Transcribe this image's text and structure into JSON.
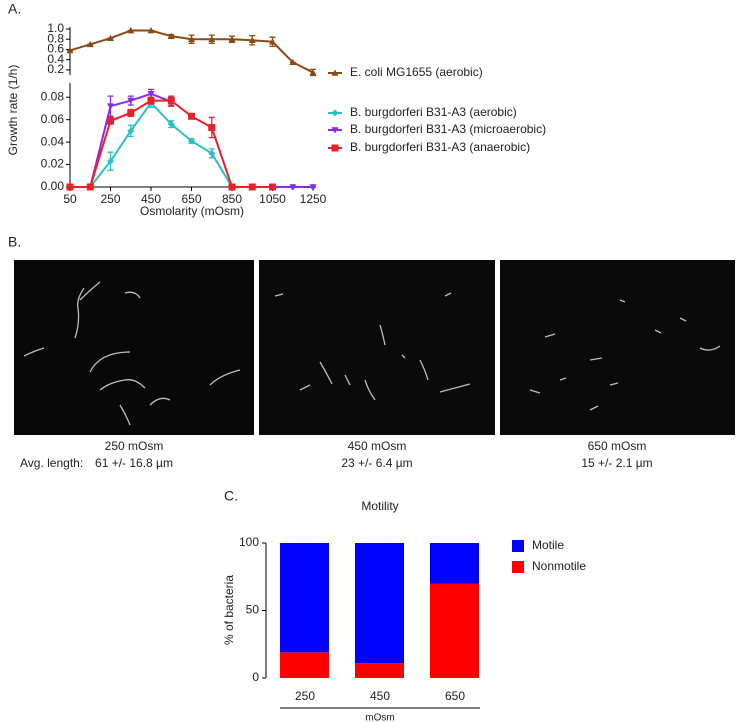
{
  "chart_data": [
    {
      "type": "line",
      "label": "A.",
      "y_label": "Growth rate (1/h)",
      "x_label": "Osmolarity (mOsm)",
      "x": [
        50,
        150,
        250,
        350,
        450,
        550,
        650,
        750,
        850,
        950,
        1050,
        1150,
        1250
      ],
      "xlim": [
        50,
        1250
      ],
      "xticks": [
        50,
        250,
        450,
        650,
        850,
        1050,
        1250
      ],
      "ylim": [
        0,
        0.09
      ],
      "yticks": [
        {
          "value": 0,
          "label": "0.00"
        },
        0.02,
        0.04,
        0.06,
        0.08
      ],
      "y2lim": [
        0.1,
        1.0
      ],
      "y2ticks": [
        0.2,
        0.4,
        0.6,
        0.8,
        {
          "value": 1.0,
          "label": "1.0"
        }
      ],
      "series": [
        {
          "name": "E. coli MG1655 (aerobic)",
          "color": "#8b4a12",
          "marker": "triangle",
          "axis": "y2",
          "values": [
            0.58,
            0.7,
            0.82,
            0.97,
            0.97,
            0.86,
            0.8,
            0.8,
            0.8,
            0.78,
            0.75,
            0.35,
            0.15
          ],
          "errors": [
            0,
            0,
            0,
            0,
            0,
            0.03,
            0.08,
            0.08,
            0.06,
            0.09,
            0.09,
            0,
            0.06
          ]
        },
        {
          "name": "B. burgdorferi B31-A3 (aerobic)",
          "color": "#2bbfc4",
          "marker": "diamond",
          "values": [
            0,
            0,
            0.023,
            0.05,
            0.075,
            0.056,
            0.041,
            0.03,
            0,
            0,
            0,
            0,
            0
          ],
          "errors": [
            0,
            0,
            0.008,
            0.005,
            0.004,
            0.003,
            0.002,
            0.004,
            0,
            0,
            0,
            0,
            0
          ]
        },
        {
          "name": "B. burgdorferi B31-A3 (microaerobic)",
          "color": "#8a2be2",
          "marker": "triangle-down",
          "values": [
            0,
            0,
            0.072,
            0.077,
            0.083,
            0.076,
            null,
            null,
            0,
            0,
            0,
            0,
            0
          ],
          "errors": [
            0,
            0,
            0.009,
            0.004,
            0.004,
            0.004,
            null,
            null,
            0,
            0,
            0,
            0,
            0
          ]
        },
        {
          "name": "B. burgdorferi B31-A3 (anaerobic)",
          "color": "#e8202a",
          "marker": "square",
          "values": [
            0,
            0,
            0.059,
            0.066,
            0.077,
            0.077,
            0.063,
            0.053,
            0,
            0,
            0,
            null,
            null
          ],
          "errors": [
            0,
            0,
            0.003,
            0.003,
            0.003,
            0.004,
            0.002,
            0.009,
            0,
            0,
            0,
            null,
            null
          ]
        }
      ]
    },
    {
      "type": "stacked_bar",
      "label": "C.",
      "title": "Motility",
      "y_label": "% of bacteria",
      "x_label": "mOsm",
      "categories": [
        "250",
        "450",
        "650"
      ],
      "ylim": [
        0,
        100
      ],
      "yticks": [
        0,
        50,
        100
      ],
      "series": [
        {
          "name": "Motile",
          "color": "#0000ff",
          "values": [
            81,
            89,
            30
          ]
        },
        {
          "name": "Nonmotile",
          "color": "#ff0000",
          "values": [
            19,
            11,
            70
          ]
        }
      ]
    }
  ],
  "images": {
    "label": "B.",
    "row_label": "Avg. length:",
    "panels": [
      {
        "condition": "250 mOsm",
        "length": "61 +/- 16.8 µm"
      },
      {
        "condition": "450 mOsm",
        "length": "23 +/- 6.4 µm"
      },
      {
        "condition": "650 mOsm",
        "length": "15 +/- 2.1 µm"
      }
    ]
  }
}
